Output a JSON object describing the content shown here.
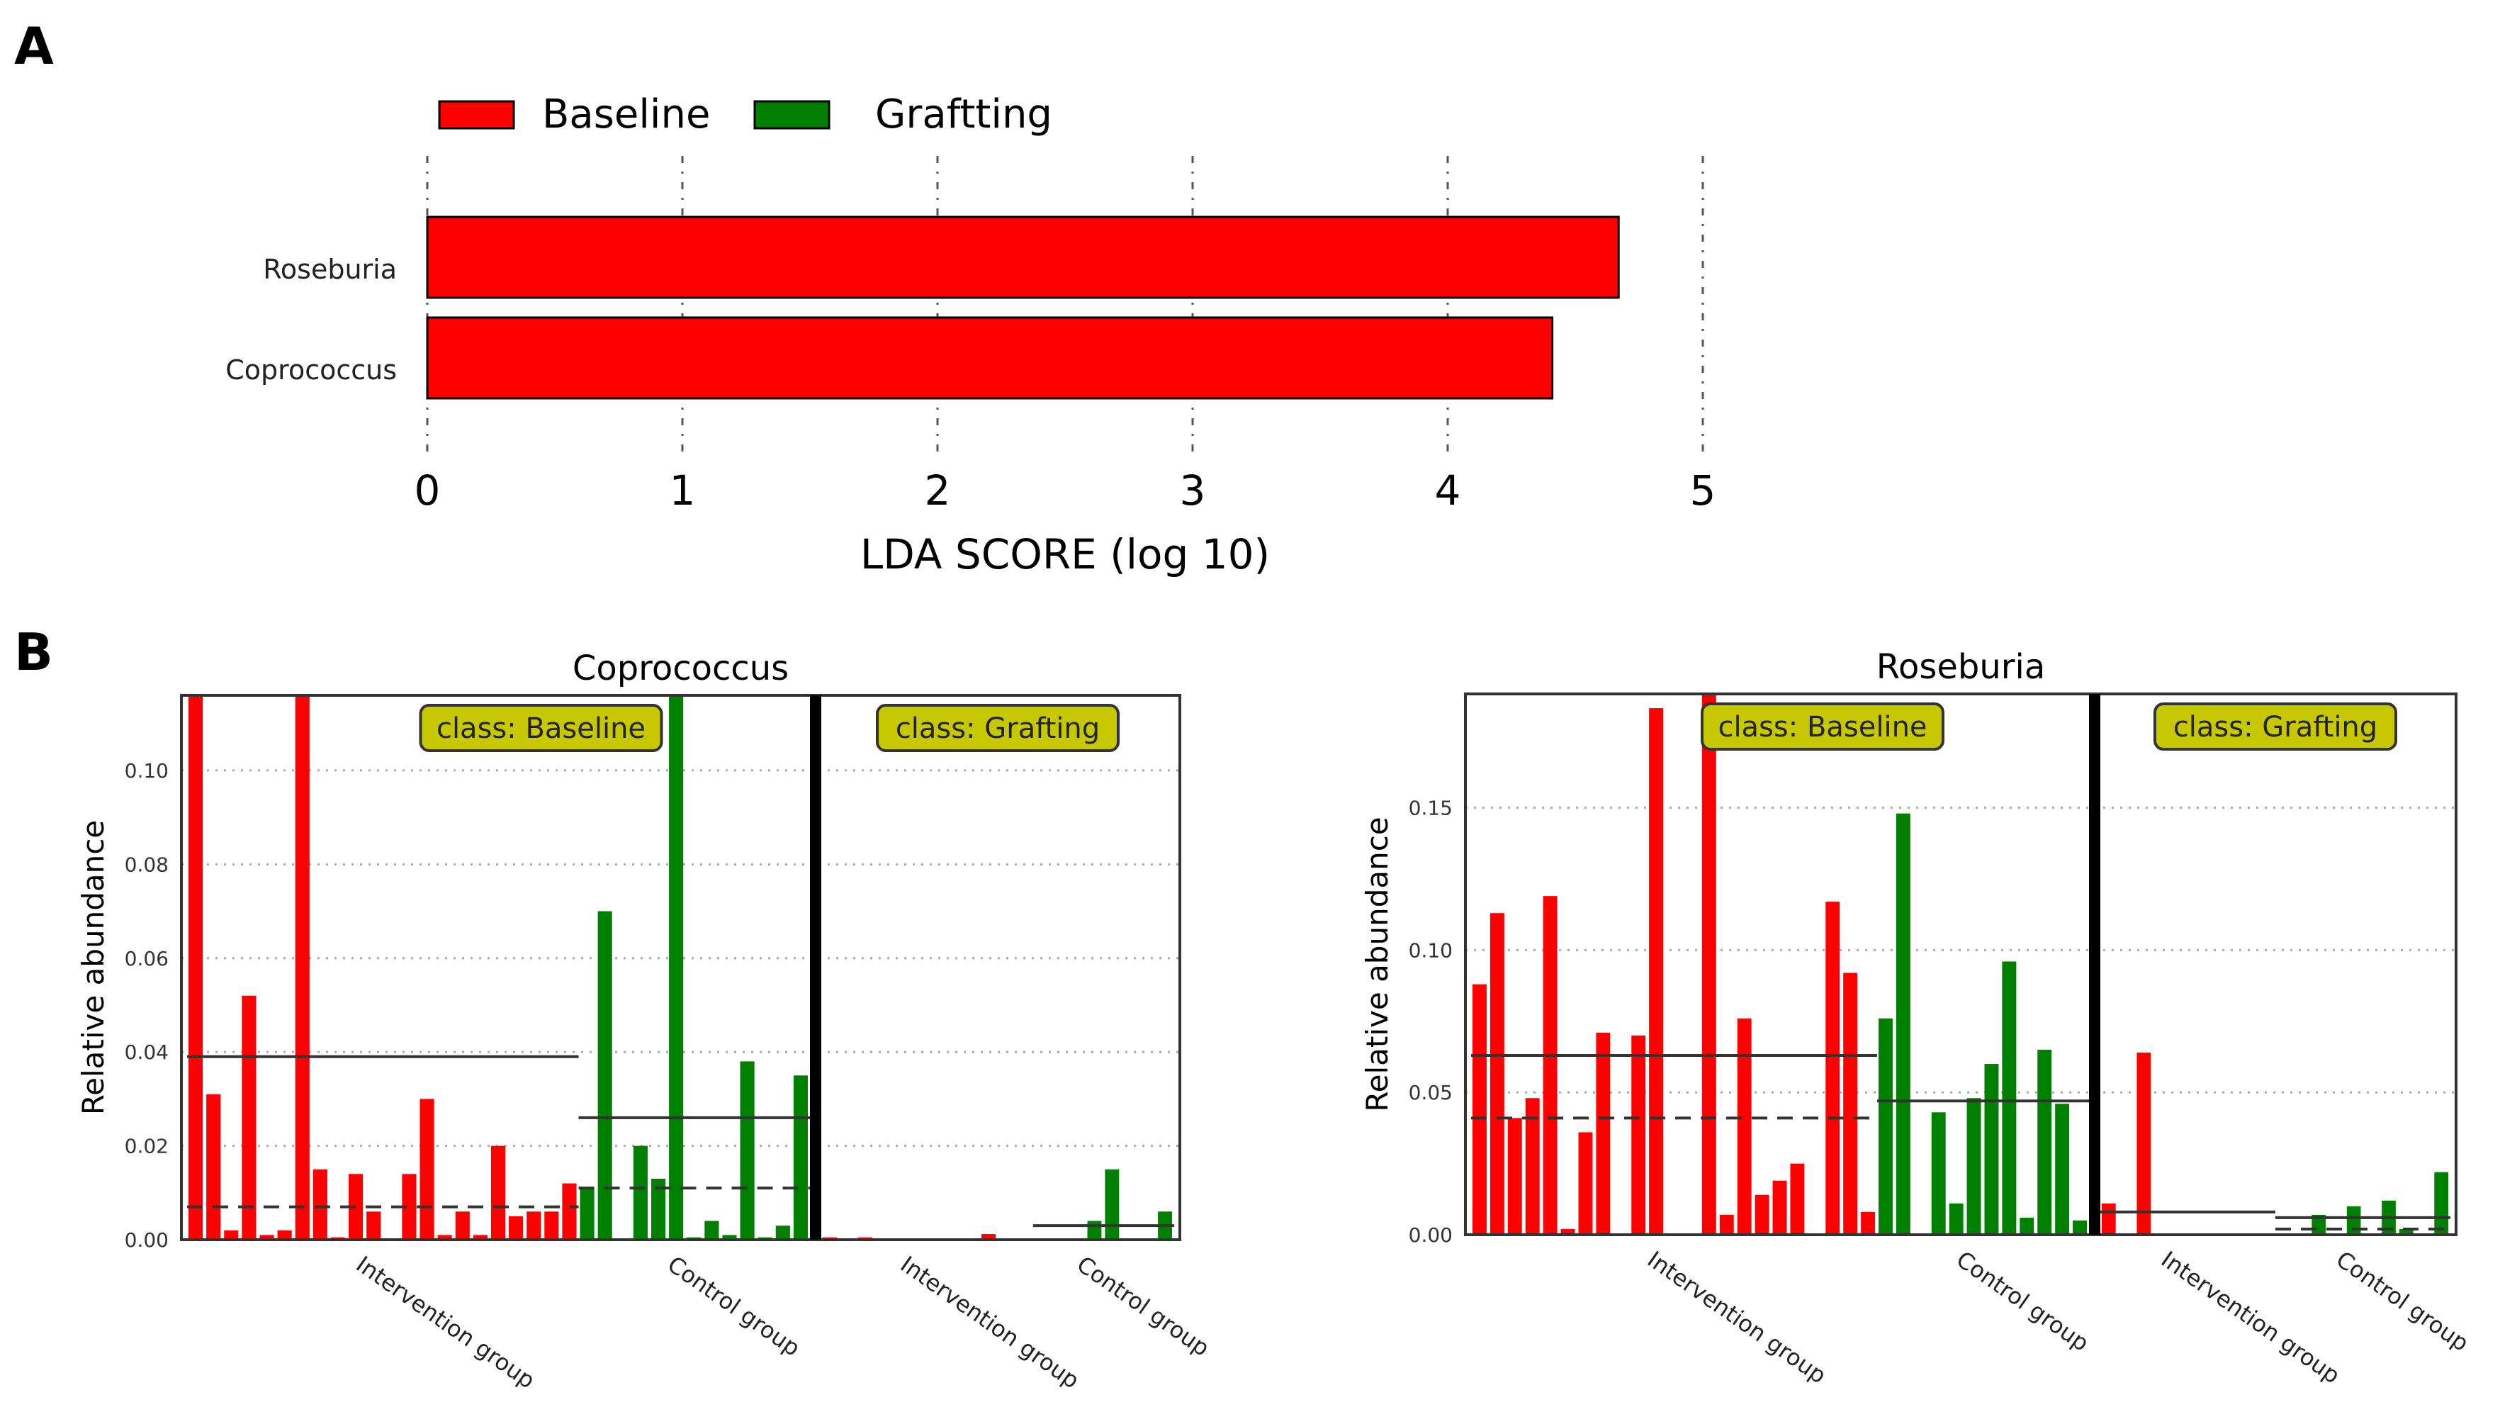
{
  "panel_labels": {
    "a": "A",
    "b": "B"
  },
  "chart_data": [
    {
      "type": "bar",
      "orientation": "horizontal",
      "title": "",
      "xlabel": "LDA SCORE (log 10)",
      "xlim": [
        0,
        5
      ],
      "xticks": [
        "0",
        "1",
        "2",
        "3",
        "4",
        "5"
      ],
      "legend": [
        {
          "name": "Baseline",
          "color": "#ff0000"
        },
        {
          "name": "Graftting",
          "color": "#008000"
        }
      ],
      "legend_placement": "top-left",
      "categories": [
        "Roseburia",
        "Coprococcus"
      ],
      "values": [
        4.67,
        4.41
      ],
      "bar_colors": [
        "#ff0000",
        "#ff0000"
      ],
      "grid": "vertical dash-dot"
    },
    {
      "type": "bar",
      "title": "Coprococcus",
      "ylabel": "Relative abundance",
      "ylim": [
        0,
        0.116
      ],
      "yticks": [
        "0.00",
        "0.02",
        "0.04",
        "0.06",
        "0.08",
        "0.10"
      ],
      "ytick_values": [
        0,
        0.02,
        0.04,
        0.06,
        0.08,
        0.1
      ],
      "classes": [
        {
          "label": "class: Baseline",
          "groups": [
            {
              "name": "Intervention group",
              "color": "#ff0000",
              "mean": 0.039,
              "median": 0.007,
              "values": [
                0.116,
                0.031,
                0.002,
                0.052,
                0.001,
                0.002,
                0.116,
                0.015,
                0.0005,
                0.014,
                0.006,
                0,
                0.014,
                0.03,
                0.001,
                0.006,
                0.001,
                0.02,
                0.005,
                0.006,
                0.006,
                0.012
              ]
            },
            {
              "name": "Control group",
              "color": "#008000",
              "mean": 0.026,
              "median": 0.011,
              "values": [
                0.011,
                0.07,
                0,
                0.02,
                0.013,
                0.116,
                0.0005,
                0.004,
                0.001,
                0.038,
                0.0005,
                0.003,
                0.035
              ]
            }
          ]
        },
        {
          "label": "class: Grafting",
          "groups": [
            {
              "name": "Intervention group",
              "color": "#ff0000",
              "mean": null,
              "median": null,
              "values": [
                0.0005,
                0,
                0.0005,
                0,
                0,
                0,
                0,
                0,
                0,
                0.0012,
                0,
                0
              ]
            },
            {
              "name": "Control group",
              "color": "#008000",
              "mean": 0.003,
              "median": null,
              "values": [
                0,
                0,
                0,
                0.004,
                0.015,
                0,
                0,
                0.006
              ]
            }
          ]
        }
      ]
    },
    {
      "type": "bar",
      "title": "Roseburia",
      "ylabel": "Relative abundance",
      "ylim": [
        0,
        0.19
      ],
      "yticks": [
        "0.00",
        "0.05",
        "0.10",
        "0.15"
      ],
      "ytick_values": [
        0,
        0.05,
        0.1,
        0.15
      ],
      "classes": [
        {
          "label": "class: Baseline",
          "groups": [
            {
              "name": "Intervention group",
              "color": "#ff0000",
              "mean": 0.063,
              "median": 0.041,
              "values": [
                0.088,
                0.113,
                0.041,
                0.048,
                0.119,
                0.002,
                0.036,
                0.071,
                0,
                0.07,
                0.185,
                0,
                0,
                0.19,
                0.007,
                0.076,
                0.014,
                0.019,
                0.025,
                0,
                0.117,
                0.092,
                0.008
              ]
            },
            {
              "name": "Control group",
              "color": "#008000",
              "mean": 0.047,
              "median": null,
              "values": [
                0.076,
                0.148,
                0,
                0.043,
                0.011,
                0.048,
                0.06,
                0.096,
                0.006,
                0.065,
                0.046,
                0.005
              ]
            }
          ]
        },
        {
          "label": "class: Grafting",
          "groups": [
            {
              "name": "Intervention group",
              "color": "#ff0000",
              "mean": 0.008,
              "median": null,
              "values": [
                0.011,
                0,
                0.064,
                0,
                0,
                0,
                0,
                0,
                0,
                0
              ]
            },
            {
              "name": "Control group",
              "color": "#008000",
              "mean": 0.006,
              "median": 0.002,
              "values": [
                0,
                0,
                0.007,
                0,
                0.01,
                0,
                0.012,
                0.002,
                0,
                0.022
              ]
            }
          ]
        }
      ]
    }
  ]
}
